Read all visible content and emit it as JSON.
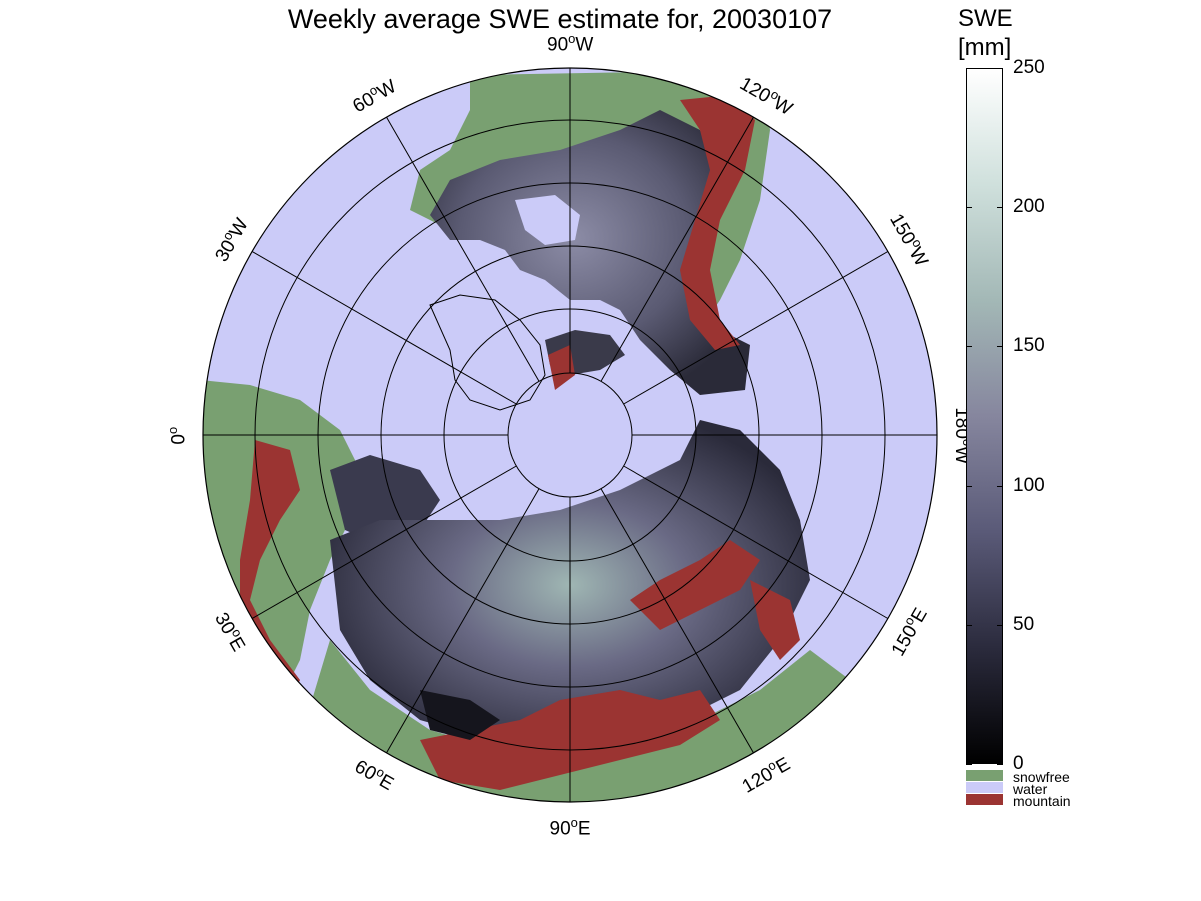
{
  "title": "Weekly average SWE estimate for, 20030107",
  "map": {
    "projection": "north polar stereographic",
    "longitude_labels": [
      {
        "deg": "90",
        "dir": "W"
      },
      {
        "deg": "120",
        "dir": "W"
      },
      {
        "deg": "150",
        "dir": "W"
      },
      {
        "deg": "180",
        "dir": "W"
      },
      {
        "deg": "150",
        "dir": "E"
      },
      {
        "deg": "120",
        "dir": "E"
      },
      {
        "deg": "90",
        "dir": "E"
      },
      {
        "deg": "60",
        "dir": "E"
      },
      {
        "deg": "30",
        "dir": "E"
      },
      {
        "deg": "0",
        "dir": ""
      },
      {
        "deg": "30",
        "dir": "W"
      },
      {
        "deg": "60",
        "dir": "W"
      }
    ]
  },
  "colorbar": {
    "title_line1": "SWE",
    "title_line2": "[mm]",
    "ticks": [
      "0",
      "50",
      "100",
      "150",
      "200",
      "250"
    ],
    "categories": [
      {
        "label": "snowfree",
        "color": "#79a071"
      },
      {
        "label": "water",
        "color": "#cbcbf8"
      },
      {
        "label": "mountain",
        "color": "#9b3432"
      }
    ],
    "gradient_colors": [
      "#000000",
      "#2b2b3d",
      "#5a5a78",
      "#86869e",
      "#a3b8b6",
      "#cfe0dc",
      "#ffffff"
    ]
  },
  "colors": {
    "water": "#cbcbf8",
    "snowfree": "#79a071",
    "mountain": "#9b3432"
  }
}
